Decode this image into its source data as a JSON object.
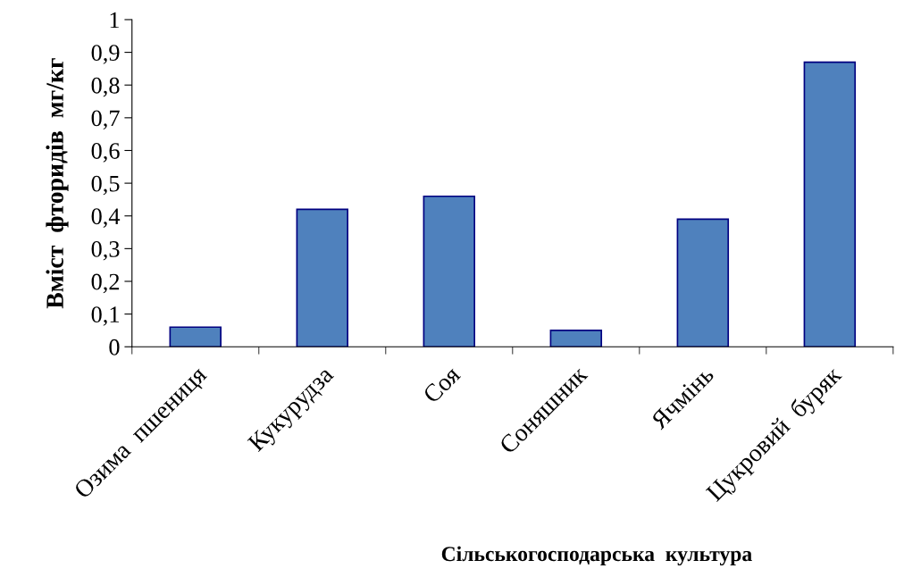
{
  "chart_data": {
    "type": "bar",
    "xlabel": "Сільськогосподарська  культура",
    "ylabel": "Вміст  фторидів  мг/кг",
    "categories": [
      "Озима  пшениця",
      "Кукурудза",
      "Соя",
      "Соняшник",
      "Ячмінь",
      "Цукровий  буряк"
    ],
    "values": [
      0.06,
      0.42,
      0.46,
      0.05,
      0.39,
      0.87
    ],
    "color": "#4f81bd",
    "ylim": [
      0,
      1
    ],
    "yticks": [
      0,
      {
        "value": 0.1,
        "label": "0,1"
      },
      {
        "value": 0.2,
        "label": "0,2"
      },
      {
        "value": 0.3,
        "label": "0,3"
      },
      {
        "value": 0.4,
        "label": "0,4"
      },
      {
        "value": 0.5,
        "label": "0,5"
      },
      {
        "value": 0.6,
        "label": "0,6"
      },
      {
        "value": 0.7,
        "label": "0,7"
      },
      {
        "value": 0.8,
        "label": "0,8"
      },
      {
        "value": 0.9,
        "label": "0,9"
      },
      1
    ],
    "grid": false,
    "legend": false
  }
}
